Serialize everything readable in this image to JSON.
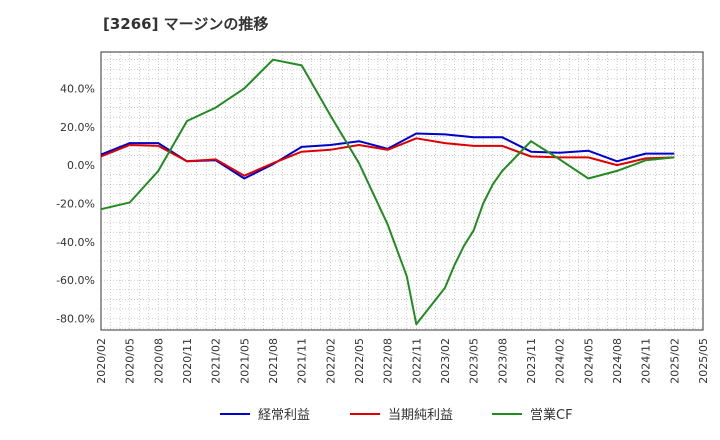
{
  "title": "[3266]  マージンの推移",
  "chart_data": {
    "type": "line",
    "title": "[3266]  マージンの推移",
    "x": [
      "2020/02",
      "2020/05",
      "2020/08",
      "2020/11",
      "2021/02",
      "2021/05",
      "2021/08",
      "2021/11",
      "2022/02",
      "2022/05",
      "2022/08",
      "2022/11",
      "2023/02",
      "2023/05",
      "2023/08",
      "2023/11",
      "2024/02",
      "2024/05",
      "2024/08",
      "2024/11",
      "2025/02",
      "2025/05"
    ],
    "ylim": [
      -86,
      59
    ],
    "yticks": [
      -80,
      -60,
      -40,
      -20,
      0,
      20,
      40
    ],
    "ytick_labels": [
      "-80.0%",
      "-60.0%",
      "-40.0%",
      "-20.0%",
      "0.0%",
      "20.0%",
      "40.0%"
    ],
    "grid": true,
    "legend_position": "bottom",
    "series": [
      {
        "name": "経常利益",
        "color": "#0000cc",
        "points": [
          [
            "2020/02",
            5.5
          ],
          [
            "2020/05",
            11.5
          ],
          [
            "2020/08",
            11.5
          ],
          [
            "2020/11",
            2
          ],
          [
            "2021/02",
            2.5
          ],
          [
            "2021/05",
            -7
          ],
          [
            "2021/08",
            0.5
          ],
          [
            "2021/11",
            9.5
          ],
          [
            "2022/02",
            10.5
          ],
          [
            "2022/05",
            12.5
          ],
          [
            "2022/08",
            8.5
          ],
          [
            "2022/11",
            16.5
          ],
          [
            "2023/02",
            16
          ],
          [
            "2023/05",
            14.5
          ],
          [
            "2023/08",
            14.5
          ],
          [
            "2023/11",
            7
          ],
          [
            "2024/02",
            6.5
          ],
          [
            "2024/05",
            7.5
          ],
          [
            "2024/08",
            2
          ],
          [
            "2024/11",
            6
          ],
          [
            "2025/02",
            6
          ]
        ]
      },
      {
        "name": "当期純利益",
        "color": "#dd0000",
        "points": [
          [
            "2020/02",
            4.5
          ],
          [
            "2020/05",
            10.5
          ],
          [
            "2020/08",
            10
          ],
          [
            "2020/11",
            2
          ],
          [
            "2021/02",
            3
          ],
          [
            "2021/05",
            -5.5
          ],
          [
            "2021/08",
            1
          ],
          [
            "2021/11",
            7
          ],
          [
            "2022/02",
            8
          ],
          [
            "2022/05",
            10.5
          ],
          [
            "2022/08",
            8
          ],
          [
            "2022/11",
            14
          ],
          [
            "2023/02",
            11.5
          ],
          [
            "2023/05",
            10
          ],
          [
            "2023/08",
            10
          ],
          [
            "2023/11",
            4.5
          ],
          [
            "2024/02",
            4
          ],
          [
            "2024/05",
            4
          ],
          [
            "2024/08",
            0
          ],
          [
            "2024/11",
            3.5
          ],
          [
            "2025/02",
            4
          ]
        ]
      },
      {
        "name": "営業CF",
        "color": "#228b22",
        "points": [
          [
            "2020/02",
            -23
          ],
          [
            "2020/05",
            -19.5
          ],
          [
            "2020/06",
            -14
          ],
          [
            "2020/08",
            -3
          ],
          [
            "2020/11",
            23
          ],
          [
            "2021/02",
            30
          ],
          [
            "2021/05",
            40
          ],
          [
            "2021/08",
            55
          ],
          [
            "2021/11",
            52
          ],
          [
            "2022/02",
            26
          ],
          [
            "2022/05",
            1
          ],
          [
            "2022/08",
            -31
          ],
          [
            "2022/10",
            -58
          ],
          [
            "2022/11",
            -83
          ],
          [
            "2023/02",
            -64
          ],
          [
            "2023/03",
            -52
          ],
          [
            "2023/04",
            -42
          ],
          [
            "2023/05",
            -34
          ],
          [
            "2023/06",
            -20
          ],
          [
            "2023/07",
            -10
          ],
          [
            "2023/08",
            -3
          ],
          [
            "2023/11",
            12.5
          ],
          [
            "2024/02",
            3
          ],
          [
            "2024/05",
            -7
          ],
          [
            "2024/08",
            -3
          ],
          [
            "2024/11",
            2.5
          ],
          [
            "2025/02",
            4
          ]
        ]
      }
    ]
  }
}
